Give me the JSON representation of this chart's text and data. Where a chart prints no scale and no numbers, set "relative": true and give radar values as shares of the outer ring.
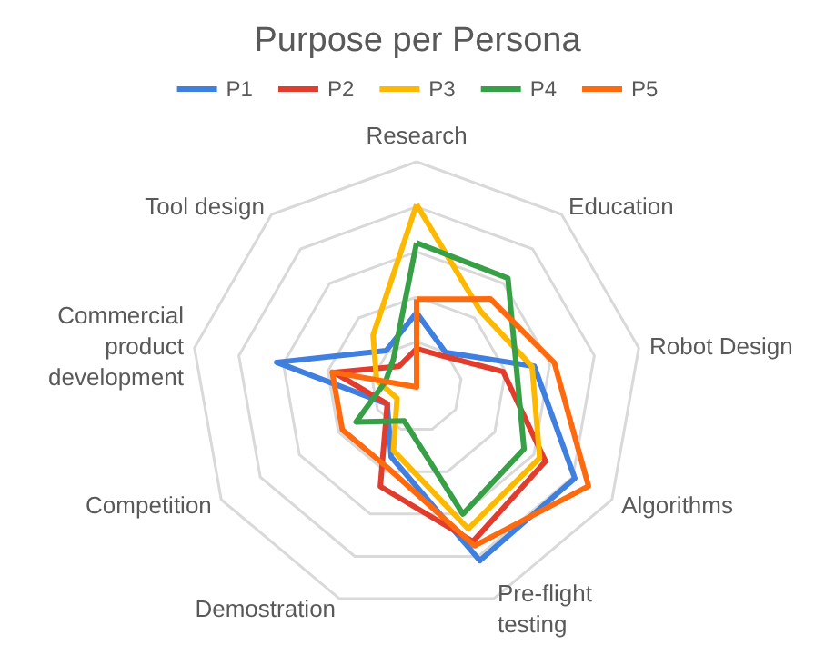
{
  "chart_data": {
    "type": "radar",
    "title": "Purpose per Persona",
    "relative": true,
    "legend": "top",
    "grid": true,
    "categories": [
      "Research",
      "Education",
      "Robot Design",
      "Algorithms",
      "Pre-flight testing",
      "Demostration",
      "Competition",
      "Commercial product development",
      "Tool design"
    ],
    "series": [
      {
        "name": "P1",
        "color": "#3f7fe0",
        "values": [
          0.33,
          0.2,
          0.53,
          0.81,
          0.82,
          0.33,
          0.15,
          0.63,
          0.21
        ]
      },
      {
        "name": "P2",
        "color": "#e23d2c",
        "values": [
          0.17,
          0.18,
          0.39,
          0.66,
          0.73,
          0.47,
          0.15,
          0.37,
          0.12
        ]
      },
      {
        "name": "P3",
        "color": "#fdb900",
        "values": [
          0.81,
          0.44,
          0.52,
          0.63,
          0.67,
          0.3,
          0.1,
          0.18,
          0.3
        ]
      },
      {
        "name": "P4",
        "color": "#37a047",
        "values": [
          0.64,
          0.63,
          0.45,
          0.55,
          0.6,
          0.16,
          0.31,
          0.14,
          0.16
        ]
      },
      {
        "name": "P5",
        "color": "#ff6a0e",
        "values": [
          0.39,
          0.51,
          0.62,
          0.88,
          0.75,
          0.38,
          0.38,
          0.38,
          0
        ]
      }
    ]
  }
}
